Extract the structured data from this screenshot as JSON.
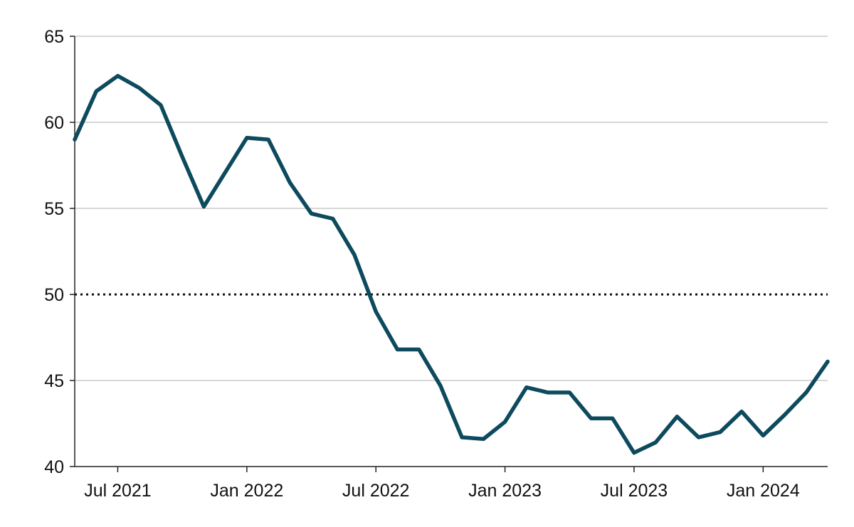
{
  "chart_data": {
    "type": "line",
    "title": "",
    "xlabel": "",
    "ylabel": "",
    "ylim": [
      40,
      65
    ],
    "yticks": [
      "40",
      "45",
      "50",
      "55",
      "60",
      "65"
    ],
    "xlim": [
      "2021-05",
      "2024-04"
    ],
    "xticks": [
      {
        "date": "2021-07",
        "label": "Jul 2021"
      },
      {
        "date": "2022-01",
        "label": "Jan 2022"
      },
      {
        "date": "2022-07",
        "label": "Jul 2022"
      },
      {
        "date": "2023-01",
        "label": "Jan 2023"
      },
      {
        "date": "2023-07",
        "label": "Jul 2023"
      },
      {
        "date": "2024-01",
        "label": "Jan 2024"
      }
    ],
    "grid": "horizontal",
    "reference_line": {
      "y": 50,
      "style": "dotted"
    },
    "colors": {
      "series": "#0d4a5e",
      "grid": "#c8c8c8",
      "reference": "#111111"
    },
    "series": [
      {
        "points": [
          {
            "x": "2021-05",
            "y": 59.0
          },
          {
            "x": "2021-06",
            "y": 61.8
          },
          {
            "x": "2021-07",
            "y": 62.7
          },
          {
            "x": "2021-08",
            "y": 62.0
          },
          {
            "x": "2021-09",
            "y": 61.0
          },
          {
            "x": "2021-10",
            "y": 58.0
          },
          {
            "x": "2021-11",
            "y": 55.1
          },
          {
            "x": "2021-12",
            "y": 57.1
          },
          {
            "x": "2022-01",
            "y": 59.1
          },
          {
            "x": "2022-02",
            "y": 59.0
          },
          {
            "x": "2022-03",
            "y": 56.5
          },
          {
            "x": "2022-04",
            "y": 54.7
          },
          {
            "x": "2022-05",
            "y": 54.4
          },
          {
            "x": "2022-06",
            "y": 52.3
          },
          {
            "x": "2022-07",
            "y": 49.0
          },
          {
            "x": "2022-08",
            "y": 46.8
          },
          {
            "x": "2022-09",
            "y": 46.8
          },
          {
            "x": "2022-10",
            "y": 44.7
          },
          {
            "x": "2022-11",
            "y": 41.7
          },
          {
            "x": "2022-12",
            "y": 41.6
          },
          {
            "x": "2023-01",
            "y": 42.6
          },
          {
            "x": "2023-02",
            "y": 44.6
          },
          {
            "x": "2023-03",
            "y": 44.3
          },
          {
            "x": "2023-04",
            "y": 44.3
          },
          {
            "x": "2023-05",
            "y": 42.8
          },
          {
            "x": "2023-06",
            "y": 42.8
          },
          {
            "x": "2023-07",
            "y": 40.8
          },
          {
            "x": "2023-08",
            "y": 41.4
          },
          {
            "x": "2023-09",
            "y": 42.9
          },
          {
            "x": "2023-10",
            "y": 41.7
          },
          {
            "x": "2023-11",
            "y": 42.0
          },
          {
            "x": "2023-12",
            "y": 43.2
          },
          {
            "x": "2024-01",
            "y": 41.8
          },
          {
            "x": "2024-02",
            "y": 43.0
          },
          {
            "x": "2024-03",
            "y": 44.3
          },
          {
            "x": "2024-04",
            "y": 46.1
          }
        ]
      }
    ]
  }
}
